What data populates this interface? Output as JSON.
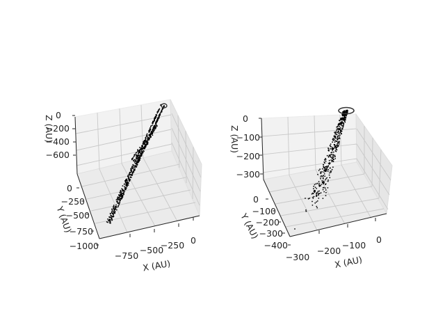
{
  "chart_data": [
    {
      "type": "scatter",
      "projection": "3d",
      "grid": true,
      "xlabel": "X (AU)",
      "ylabel": "Y (AU)",
      "zlabel": "Z (AU)",
      "xticks": [
        "−750",
        "−500",
        "−250",
        "0"
      ],
      "yticks": [
        "0",
        "−250",
        "−500",
        "−750",
        "−1000"
      ],
      "zticks": [
        "0",
        "−200",
        "−400",
        "−600"
      ],
      "xlim": [
        -1000,
        80
      ],
      "ylim": [
        -1000,
        80
      ],
      "zlim": [
        -700,
        0
      ],
      "marker_color": "#000000",
      "series": [
        {
          "description_points": [
            {
              "x": 0,
              "y": 0,
              "z": 0
            },
            {
              "x": -120,
              "y": -120,
              "z": -80
            },
            {
              "x": -300,
              "y": -320,
              "z": -220
            },
            {
              "x": -500,
              "y": -520,
              "z": -360
            },
            {
              "x": -700,
              "y": -720,
              "z": -500
            },
            {
              "x": -880,
              "y": -900,
              "z": -640
            }
          ]
        }
      ]
    },
    {
      "type": "scatter",
      "projection": "3d",
      "grid": true,
      "xlabel": "X (AU)",
      "ylabel": "Y (AU)",
      "zlabel": "Z (AU)",
      "xticks": [
        "−300",
        "−200",
        "−100",
        "0"
      ],
      "yticks": [
        "0",
        "−100",
        "−200",
        "−300",
        "−400"
      ],
      "zticks": [
        "0",
        "−100",
        "−200",
        "−300"
      ],
      "xlim": [
        -320,
        20
      ],
      "ylim": [
        -420,
        20
      ],
      "zlim": [
        -330,
        0
      ],
      "marker_color": "#000000",
      "series": [
        {
          "description_points": [
            {
              "x": 0,
              "y": 0,
              "z": 0
            },
            {
              "x": -20,
              "y": -30,
              "z": -40
            },
            {
              "x": -50,
              "y": -70,
              "z": -90
            },
            {
              "x": -80,
              "y": -120,
              "z": -150
            },
            {
              "x": -120,
              "y": -180,
              "z": -220
            },
            {
              "x": -200,
              "y": -300,
              "z": -320
            }
          ]
        }
      ]
    }
  ]
}
